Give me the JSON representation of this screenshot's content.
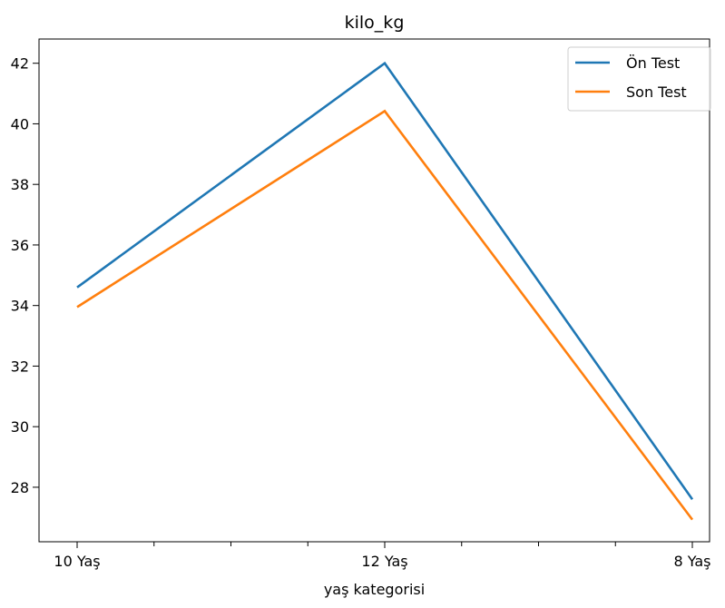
{
  "chart_data": {
    "type": "line",
    "title": "kilo_kg",
    "xlabel": "yaş kategorisi",
    "ylabel": "",
    "categories": [
      "10 Yaş",
      "12 Yaş",
      "8 Yaş"
    ],
    "ylim": [
      26.2,
      42.8
    ],
    "yticks": [
      28,
      30,
      32,
      34,
      36,
      38,
      40,
      42
    ],
    "grid": false,
    "legend_position": "top-right",
    "series": [
      {
        "name": "Ön Test",
        "color": "#1f77b4",
        "values": [
          34.6,
          42.0,
          27.6
        ]
      },
      {
        "name": "Son Test",
        "color": "#ff7f0e",
        "values": [
          33.95,
          40.42,
          26.93
        ]
      }
    ]
  }
}
